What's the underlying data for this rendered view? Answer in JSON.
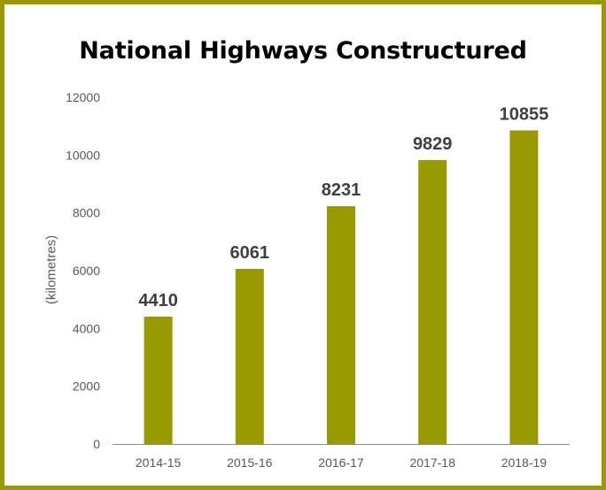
{
  "chart_data": {
    "type": "bar",
    "title": "National Highways Constructured",
    "xlabel": "",
    "ylabel": "(kilometres)",
    "categories": [
      "2014-15",
      "2015-16",
      "2016-17",
      "2017-18",
      "2018-19"
    ],
    "values": [
      4410,
      6061,
      8231,
      9829,
      10855
    ],
    "data_labels": [
      "4410",
      "6061",
      "8231",
      "9829",
      "10855"
    ],
    "ylim": [
      0,
      12000
    ],
    "yticks": [
      0,
      2000,
      4000,
      6000,
      8000,
      10000,
      12000
    ],
    "ytick_labels": [
      "0",
      "2000",
      "4000",
      "6000",
      "8000",
      "10000",
      "12000"
    ],
    "grid": false,
    "legend": "none",
    "colors": {
      "bar": "#999900",
      "frame": "#999900",
      "axis": "#8c8c8c",
      "tick_text": "#595959",
      "data_label": "#404040",
      "title": "#000000"
    }
  }
}
